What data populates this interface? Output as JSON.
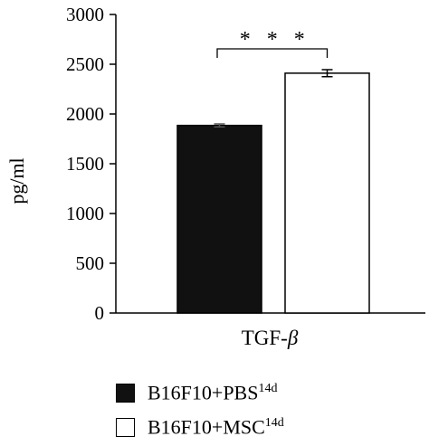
{
  "chart_data": {
    "type": "bar",
    "categories": [
      "TGF-"
    ],
    "category_symbol": "β",
    "series": [
      {
        "name": "B16F10+PBS",
        "superscript": "14d",
        "values": [
          1885
        ],
        "error": [
          15
        ],
        "fill": "#111111"
      },
      {
        "name": "B16F10+MSC",
        "superscript": "14d",
        "values": [
          2410
        ],
        "error": [
          35
        ],
        "fill": "#ffffff"
      }
    ],
    "ylabel": "pg/ml",
    "ylim": [
      0,
      3000
    ],
    "yticks": [
      "0",
      "500",
      "1000",
      "1500",
      "2000",
      "2500",
      "3000"
    ],
    "ytick_values": [
      0,
      500,
      1000,
      1500,
      2000,
      2500,
      3000
    ],
    "significance": "* * *",
    "grid": false,
    "legend_position": "bottom-left"
  }
}
